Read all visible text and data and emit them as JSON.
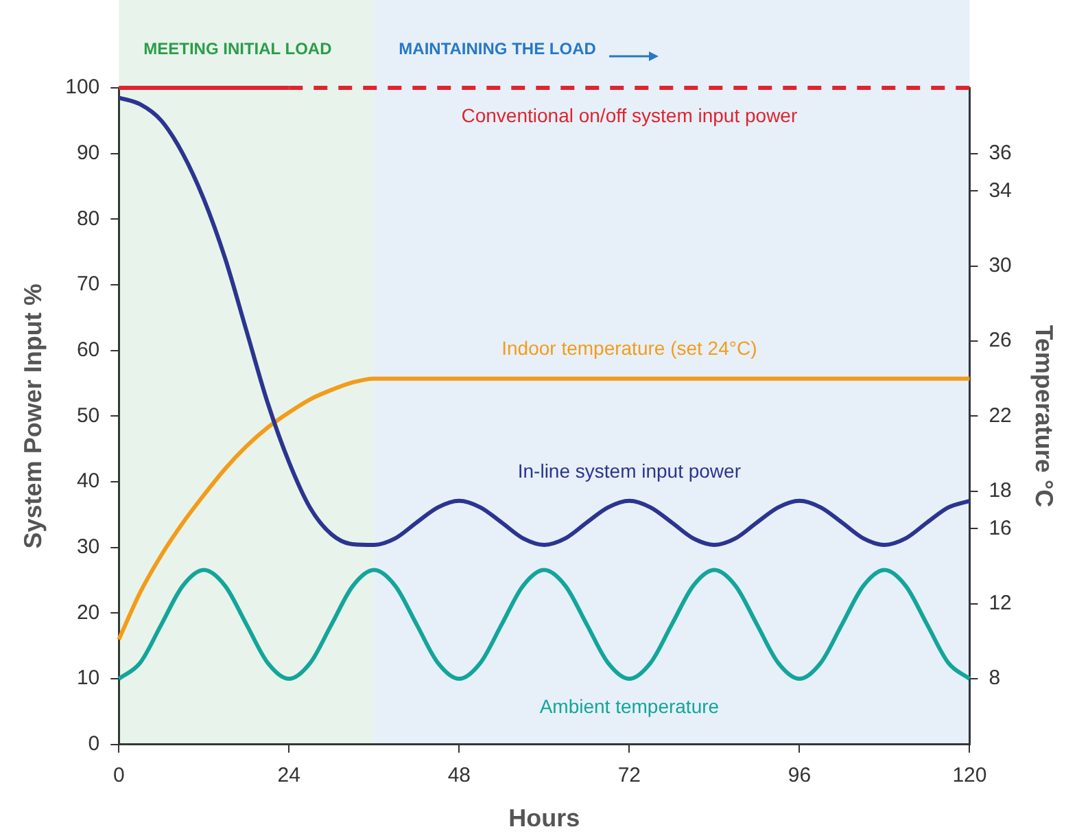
{
  "chart_data": {
    "type": "line",
    "xlabel": "Hours",
    "ylabel": "System Power Input %",
    "y2label": "Temperature °C",
    "xlim": [
      0,
      120
    ],
    "xticks": [
      0,
      24,
      48,
      72,
      96,
      120
    ],
    "ylim": [
      0,
      100
    ],
    "yticks": [
      0,
      10,
      20,
      30,
      40,
      50,
      60,
      70,
      80,
      90,
      100
    ],
    "y2lim": [
      4.5,
      39.5
    ],
    "y2ticks": [
      8,
      12,
      16,
      18,
      22,
      26,
      30,
      34,
      36
    ],
    "grid": false,
    "legend": false,
    "marker": "none",
    "bands": [
      {
        "axis": "x",
        "from": 0,
        "to": 36,
        "label": "MEETING INITIAL LOAD",
        "color": "#2a9d4a"
      },
      {
        "axis": "x",
        "from": 36,
        "to": 120,
        "label": "MAINTAINING THE LOAD",
        "color": "#2878c8"
      }
    ],
    "series": [
      {
        "name": "Conventional on/off system input power",
        "color": "#e0242f",
        "line_style": "solid",
        "x": [
          0,
          24
        ],
        "values": [
          100,
          100
        ]
      },
      {
        "color": "#e0242f",
        "line_style": "dashed",
        "x": [
          24,
          120
        ],
        "values": [
          100,
          100
        ]
      },
      {
        "name": "In-line system input power",
        "color": "#2b3590",
        "line_style": "solid",
        "x": [
          0,
          3,
          6,
          9,
          12,
          15,
          18,
          21,
          24,
          27,
          30,
          33,
          36,
          39,
          42,
          45,
          48,
          51,
          54,
          57,
          60,
          63,
          66,
          69,
          72,
          75,
          78,
          81,
          84,
          87,
          90,
          93,
          96,
          99,
          102,
          105,
          108,
          111,
          114,
          117,
          120
        ],
        "values": [
          98.5,
          97.5,
          95,
          90,
          83,
          74,
          63,
          52,
          43,
          36,
          32,
          30.5,
          30.4,
          31.4,
          33.8,
          36.1,
          37.1,
          36.1,
          33.8,
          31.4,
          30.4,
          31.4,
          33.8,
          36.1,
          37.1,
          36.1,
          33.8,
          31.4,
          30.4,
          31.4,
          33.8,
          36.1,
          37.1,
          36.1,
          33.8,
          31.4,
          30.4,
          31.4,
          33.8,
          36.1,
          37.1
        ]
      },
      {
        "name": "Indoor temperature (set 24°C)",
        "color": "#f39c1a",
        "line_style": "solid",
        "axis": "y2",
        "x": [
          0,
          3,
          6,
          9,
          12,
          15,
          18,
          21,
          24,
          27,
          30,
          33,
          36,
          120
        ],
        "values": [
          10.1,
          12.6,
          14.6,
          16.3,
          17.8,
          19.2,
          20.4,
          21.4,
          22.2,
          22.9,
          23.4,
          23.8,
          24,
          24
        ]
      },
      {
        "name": "Ambient temperature",
        "color": "#14a59a",
        "line_style": "solid",
        "axis": "y2",
        "x": [
          0,
          3,
          6,
          9,
          12,
          15,
          18,
          21,
          24,
          27,
          30,
          33,
          36,
          39,
          42,
          45,
          48,
          51,
          54,
          57,
          60,
          63,
          66,
          69,
          72,
          75,
          78,
          81,
          84,
          87,
          90,
          93,
          96,
          99,
          102,
          105,
          108,
          111,
          114,
          117,
          120
        ],
        "values": [
          8,
          8.85,
          10.9,
          12.95,
          13.8,
          12.95,
          10.9,
          8.85,
          8,
          8.85,
          10.9,
          12.95,
          13.8,
          12.95,
          10.9,
          8.85,
          8,
          8.85,
          10.9,
          12.95,
          13.8,
          12.95,
          10.9,
          8.85,
          8,
          8.85,
          10.9,
          12.95,
          13.8,
          12.95,
          10.9,
          8.85,
          8,
          8.85,
          10.9,
          12.95,
          13.8,
          12.95,
          10.9,
          8.85,
          8
        ]
      }
    ]
  }
}
